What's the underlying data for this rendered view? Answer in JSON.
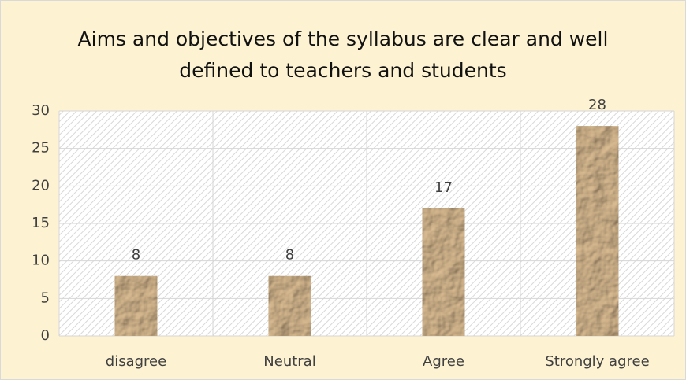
{
  "chart_data": {
    "type": "bar",
    "title": "Aims and objectives of the syllabus are clear and well defined to teachers and students",
    "categories": [
      "disagree",
      "Neutral",
      "Agree",
      "Strongly agree"
    ],
    "values": [
      8,
      8,
      17,
      28
    ],
    "color": "#b58a5c",
    "ylim": [
      0,
      30
    ],
    "yticks": [
      0,
      5,
      10,
      15,
      20,
      25,
      30
    ],
    "grid": true
  }
}
